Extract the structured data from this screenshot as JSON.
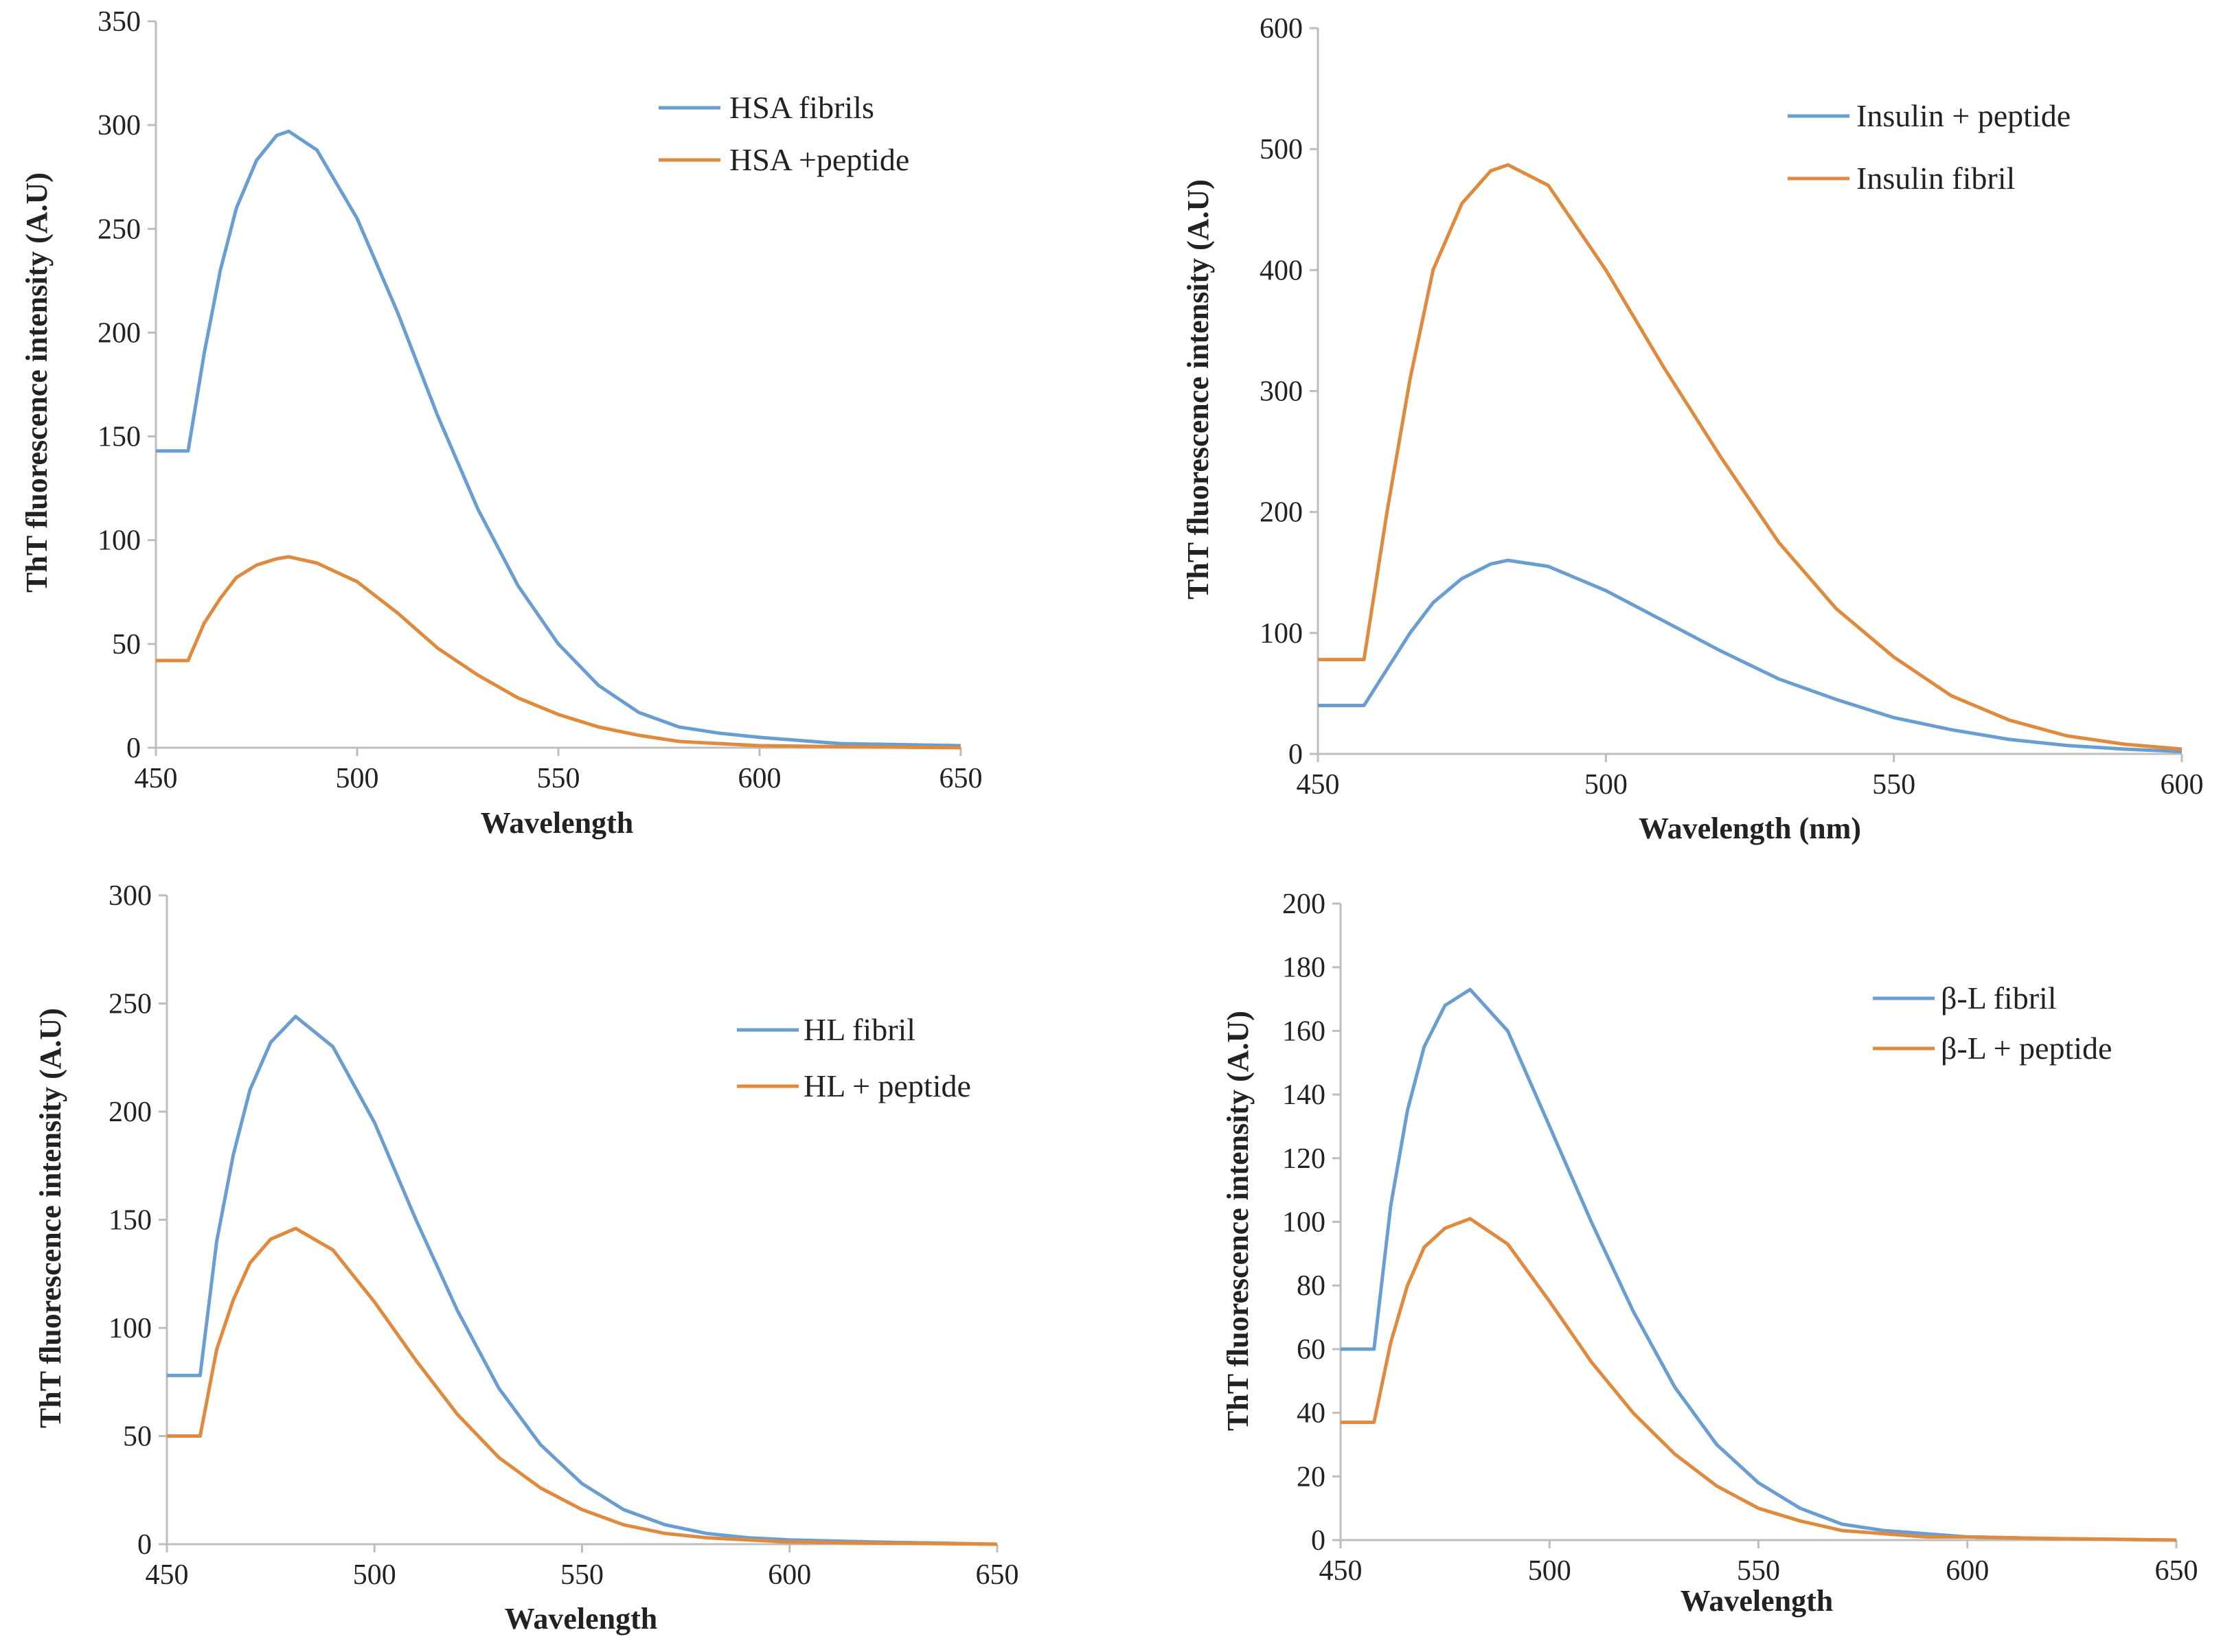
{
  "colors": {
    "blue": "#6a9ed0",
    "orange": "#e08a3e"
  },
  "chart_data": [
    {
      "type": "line",
      "title": "",
      "xlabel": "Wavelength",
      "ylabel": "ThT fluorescence intensity (A.U)",
      "xlim": [
        450,
        650
      ],
      "ylim": [
        0,
        350
      ],
      "xticks": [
        450,
        500,
        550,
        600,
        650
      ],
      "yticks": [
        0,
        50,
        100,
        150,
        200,
        250,
        300,
        350
      ],
      "legend_position": "top-right",
      "x": [
        450,
        458,
        462,
        466,
        470,
        475,
        480,
        483,
        490,
        500,
        510,
        520,
        530,
        540,
        550,
        560,
        570,
        580,
        590,
        600,
        620,
        650
      ],
      "series": [
        {
          "name": "HSA fibrils",
          "color": "blue",
          "values": [
            143,
            143,
            190,
            230,
            260,
            283,
            295,
            297,
            288,
            255,
            210,
            160,
            115,
            78,
            50,
            30,
            17,
            10,
            7,
            5,
            2,
            1
          ]
        },
        {
          "name": "HSA +peptide",
          "color": "orange",
          "values": [
            42,
            42,
            60,
            72,
            82,
            88,
            91,
            92,
            89,
            80,
            65,
            48,
            35,
            24,
            16,
            10,
            6,
            3,
            2,
            1,
            0.5,
            0
          ]
        }
      ]
    },
    {
      "type": "line",
      "title": "",
      "xlabel": "Wavelength (nm)",
      "ylabel": "ThT fluorescence intensity (A.U)",
      "xlim": [
        450,
        600
      ],
      "ylim": [
        0,
        600
      ],
      "xticks": [
        450,
        500,
        550,
        600
      ],
      "yticks": [
        0,
        100,
        200,
        300,
        400,
        500,
        600
      ],
      "legend_position": "top-right",
      "x": [
        450,
        458,
        462,
        466,
        470,
        475,
        480,
        483,
        490,
        500,
        510,
        520,
        530,
        540,
        550,
        560,
        570,
        580,
        590,
        600
      ],
      "series": [
        {
          "name": "Insulin + peptide",
          "color": "blue",
          "values": [
            40,
            40,
            70,
            100,
            125,
            145,
            157,
            160,
            155,
            135,
            110,
            85,
            62,
            45,
            30,
            20,
            12,
            7,
            4,
            2
          ]
        },
        {
          "name": "Insulin fibril",
          "color": "orange",
          "values": [
            78,
            78,
            200,
            310,
            400,
            455,
            482,
            487,
            470,
            400,
            320,
            245,
            175,
            120,
            80,
            48,
            28,
            15,
            8,
            4
          ]
        }
      ]
    },
    {
      "type": "line",
      "title": "",
      "xlabel": "Wavelength",
      "ylabel": "ThT fluorescence intensity (A.U)",
      "xlim": [
        450,
        650
      ],
      "ylim": [
        0,
        300
      ],
      "xticks": [
        450,
        500,
        550,
        600,
        650
      ],
      "yticks": [
        0,
        50,
        100,
        150,
        200,
        250,
        300
      ],
      "legend_position": "top-right",
      "x": [
        450,
        458,
        462,
        466,
        470,
        475,
        481,
        490,
        500,
        510,
        520,
        530,
        540,
        550,
        560,
        570,
        580,
        590,
        600,
        620,
        650
      ],
      "series": [
        {
          "name": "HL fibril",
          "color": "blue",
          "values": [
            78,
            78,
            140,
            180,
            210,
            232,
            244,
            230,
            195,
            150,
            108,
            72,
            46,
            28,
            16,
            9,
            5,
            3,
            2,
            1,
            0
          ]
        },
        {
          "name": "HL + peptide",
          "color": "orange",
          "values": [
            50,
            50,
            90,
            113,
            130,
            141,
            146,
            136,
            112,
            85,
            60,
            40,
            26,
            16,
            9,
            5,
            3,
            2,
            1,
            0.5,
            0
          ]
        }
      ]
    },
    {
      "type": "line",
      "title": "",
      "xlabel": "Wavelength",
      "ylabel": "ThT fluorescence intensity (A.U)",
      "xlim": [
        450,
        650
      ],
      "ylim": [
        0,
        200
      ],
      "xticks": [
        450,
        500,
        550,
        600,
        650
      ],
      "yticks": [
        0,
        20,
        40,
        60,
        80,
        100,
        120,
        140,
        160,
        180,
        200
      ],
      "legend_position": "top-right",
      "x": [
        450,
        458,
        462,
        466,
        470,
        475,
        481,
        490,
        500,
        510,
        520,
        530,
        540,
        550,
        560,
        570,
        580,
        590,
        600,
        620,
        650
      ],
      "series": [
        {
          "name": "β-L fibril",
          "color": "blue",
          "values": [
            60,
            60,
            105,
            135,
            155,
            168,
            173,
            160,
            130,
            100,
            72,
            48,
            30,
            18,
            10,
            5,
            3,
            2,
            1,
            0.5,
            0
          ]
        },
        {
          "name": "β-L + peptide",
          "color": "orange",
          "values": [
            37,
            37,
            62,
            80,
            92,
            98,
            101,
            93,
            75,
            56,
            40,
            27,
            17,
            10,
            6,
            3,
            2,
            1,
            1,
            0.5,
            0
          ]
        }
      ]
    }
  ]
}
